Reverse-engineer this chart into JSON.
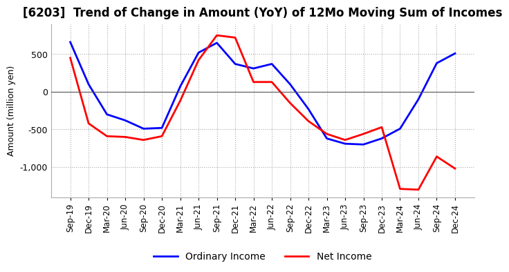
{
  "title": "[6203]  Trend of Change in Amount (YoY) of 12Mo Moving Sum of Incomes",
  "ylabel": "Amount (million yen)",
  "x_labels": [
    "Sep-19",
    "Dec-19",
    "Mar-20",
    "Jun-20",
    "Sep-20",
    "Dec-20",
    "Mar-21",
    "Jun-21",
    "Sep-21",
    "Dec-21",
    "Mar-22",
    "Jun-22",
    "Sep-22",
    "Dec-22",
    "Mar-23",
    "Jun-23",
    "Sep-23",
    "Dec-23",
    "Mar-24",
    "Jun-24",
    "Sep-24",
    "Dec-24"
  ],
  "ordinary_income": [
    660,
    100,
    -300,
    -380,
    -490,
    -480,
    70,
    520,
    650,
    370,
    310,
    370,
    100,
    -230,
    -620,
    -690,
    -700,
    -620,
    -490,
    -100,
    380,
    510
  ],
  "net_income": [
    450,
    -420,
    -590,
    -600,
    -640,
    -590,
    -120,
    420,
    750,
    720,
    130,
    130,
    -150,
    -390,
    -560,
    -640,
    -560,
    -470,
    -1290,
    -1300,
    -860,
    -1020
  ],
  "ylim": [
    -1400,
    900
  ],
  "yticks": [
    -1000,
    -500,
    0,
    500
  ],
  "grid_color": "#aaaaaa",
  "ordinary_color": "#0000ff",
  "net_color": "#ff0000",
  "background_color": "#ffffff",
  "title_fontsize": 12,
  "legend_labels": [
    "Ordinary Income",
    "Net Income"
  ]
}
